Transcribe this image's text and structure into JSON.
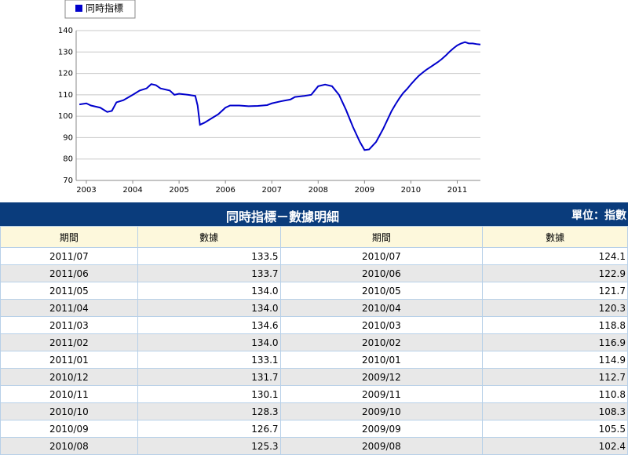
{
  "chart_data": {
    "type": "line",
    "series": [
      {
        "name": "同時指標",
        "color": "#0000cc",
        "values": [
          105.5,
          106,
          105,
          104,
          102,
          102.5,
          106.5,
          107.5,
          110,
          112,
          113,
          115,
          114.5,
          113,
          112,
          110,
          110.5,
          110,
          109.5,
          105,
          96,
          97,
          99,
          101,
          104,
          105,
          105,
          104.7,
          104.8,
          105.2,
          106,
          107,
          107.8,
          109,
          109.5,
          110,
          114,
          114.8,
          114,
          110,
          103,
          95,
          88,
          84.2,
          84.5,
          88,
          94,
          102.4,
          105.5,
          108.3,
          110.8,
          112.7,
          114.9,
          116.9,
          118.8,
          120.3,
          121.7,
          122.9,
          124.1,
          125.3,
          126.7,
          128.3,
          130.1,
          131.7,
          133.1,
          134.0,
          134.6,
          134.0,
          134.0,
          133.7,
          133.5
        ]
      }
    ],
    "x": [
      2002.85,
      2003.0,
      2003.1,
      2003.3,
      2003.45,
      2003.55,
      2003.65,
      2003.8,
      2004.0,
      2004.15,
      2004.3,
      2004.4,
      2004.5,
      2004.6,
      2004.8,
      2004.9,
      2005.0,
      2005.2,
      2005.35,
      2005.4,
      2005.45,
      2005.55,
      2005.7,
      2005.85,
      2006.0,
      2006.1,
      2006.3,
      2006.5,
      2006.7,
      2006.9,
      2007.0,
      2007.2,
      2007.4,
      2007.5,
      2007.7,
      2007.85,
      2008.0,
      2008.15,
      2008.3,
      2008.45,
      2008.6,
      2008.75,
      2008.9,
      2009.0,
      2009.1,
      2009.25,
      2009.4,
      2009.583,
      2009.667,
      2009.75,
      2009.833,
      2009.917,
      2010.0,
      2010.083,
      2010.167,
      2010.25,
      2010.333,
      2010.417,
      2010.5,
      2010.583,
      2010.667,
      2010.75,
      2010.833,
      2010.917,
      2011.0,
      2011.083,
      2011.167,
      2011.25,
      2011.333,
      2011.417,
      2011.5
    ],
    "xlim": [
      2002.78,
      2011.5
    ],
    "xticks": [
      2003,
      2004,
      2005,
      2006,
      2007,
      2008,
      2009,
      2010,
      2011
    ],
    "ylim": [
      70,
      140
    ],
    "yticks": [
      70,
      80,
      90,
      100,
      110,
      120,
      130,
      140
    ],
    "grid": true
  },
  "table": {
    "title": "同時指標－數據明細",
    "unit": "單位：指數",
    "headers": [
      "期間",
      "數據",
      "期間",
      "數據"
    ],
    "rows": [
      [
        "2011/07",
        "133.5",
        "2010/07",
        "124.1"
      ],
      [
        "2011/06",
        "133.7",
        "2010/06",
        "122.9"
      ],
      [
        "2011/05",
        "134.0",
        "2010/05",
        "121.7"
      ],
      [
        "2011/04",
        "134.0",
        "2010/04",
        "120.3"
      ],
      [
        "2011/03",
        "134.6",
        "2010/03",
        "118.8"
      ],
      [
        "2011/02",
        "134.0",
        "2010/02",
        "116.9"
      ],
      [
        "2011/01",
        "133.1",
        "2010/01",
        "114.9"
      ],
      [
        "2010/12",
        "131.7",
        "2009/12",
        "112.7"
      ],
      [
        "2010/11",
        "130.1",
        "2009/11",
        "110.8"
      ],
      [
        "2010/10",
        "128.3",
        "2009/10",
        "108.3"
      ],
      [
        "2010/09",
        "126.7",
        "2009/09",
        "105.5"
      ],
      [
        "2010/08",
        "125.3",
        "2009/08",
        "102.4"
      ]
    ]
  }
}
